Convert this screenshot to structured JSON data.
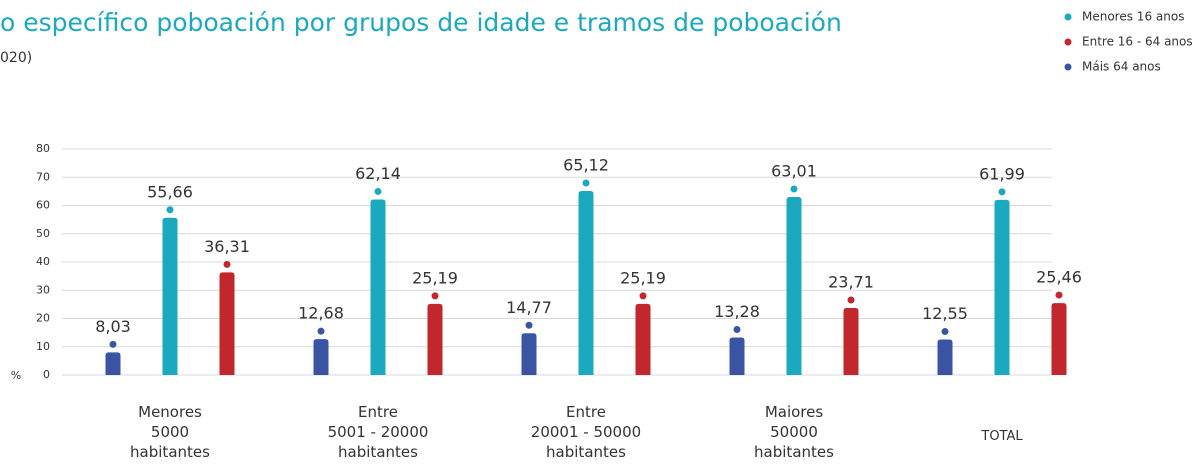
{
  "chart_data": {
    "type": "bar",
    "title": "o específico poboación por grupos de idade e tramos de poboación",
    "subtitle": "020)",
    "y_label": "%",
    "categories": [
      "Menores\n5000\nhabitantes",
      "Entre\n5001 - 20000\nhabitantes",
      "Entre\n20001 - 50000\nhabitantes",
      "Maiores\n50000\nhabitantes",
      "TOTAL"
    ],
    "series": [
      {
        "name": "Menores 16 anos",
        "color": "#1aa9bf",
        "values": [
          55.66,
          62.14,
          65.12,
          63.01,
          61.99
        ],
        "value_labels": [
          "55,66",
          "62,14",
          "65,12",
          "63,01",
          "61,99"
        ]
      },
      {
        "name": "Entre 16 - 64 anos",
        "color": "#c1272d",
        "values": [
          36.31,
          25.19,
          25.19,
          23.71,
          25.46
        ],
        "value_labels": [
          "36,31",
          "25,19",
          "25,19",
          "23,71",
          "25,46"
        ]
      },
      {
        "name": "Máis 64 anos",
        "color": "#3a54a4",
        "values": [
          8.03,
          12.68,
          14.77,
          13.28,
          12.55
        ],
        "value_labels": [
          "8,03",
          "12,68",
          "14,77",
          "13,28",
          "12,55"
        ]
      }
    ],
    "ylim": [
      0,
      80
    ],
    "yticks": [
      0,
      10,
      20,
      30,
      40,
      50,
      60,
      70,
      80
    ],
    "grid": true,
    "legend": "top-right"
  }
}
